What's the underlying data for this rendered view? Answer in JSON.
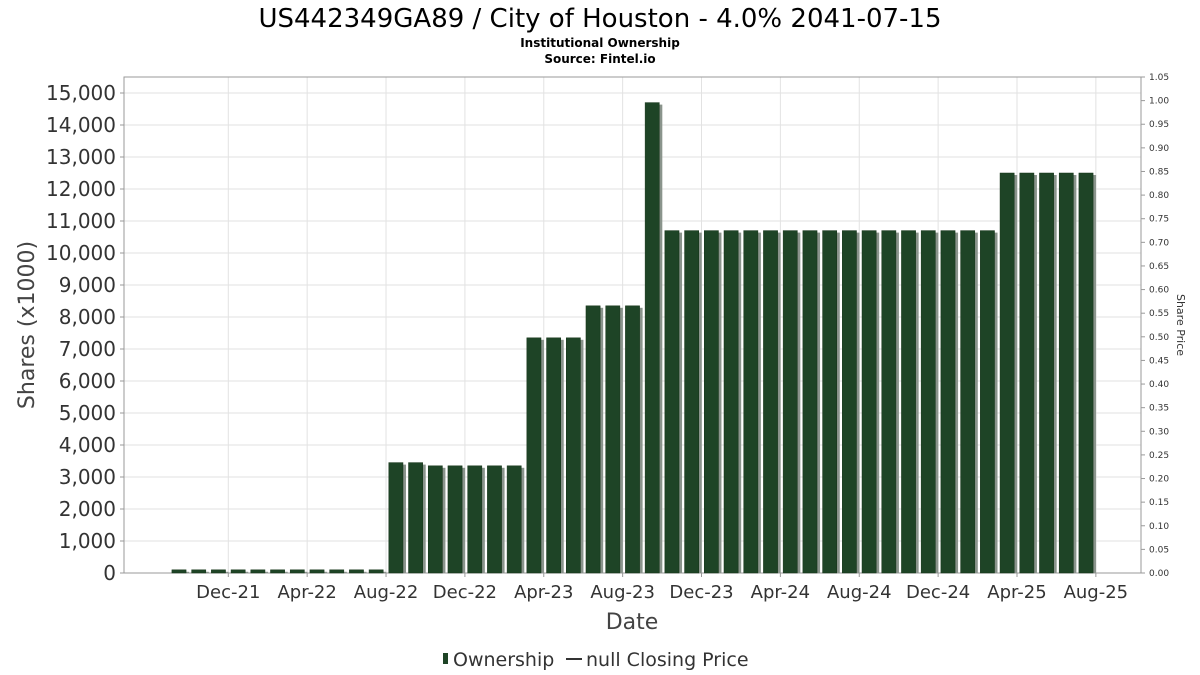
{
  "chart_data": {
    "type": "bar",
    "title": "US442349GA89 / City of Houston - 4.0% 2041-07-15",
    "subtitle": "Institutional Ownership",
    "source": "Source: Fintel.io",
    "xlabel": "Date",
    "ylabel": "Shares (x1000)",
    "y2label": "Share Price",
    "ylim": [
      0,
      15500
    ],
    "y2lim": [
      0,
      1.05
    ],
    "yticks": [
      "0",
      "1,000",
      "2,000",
      "3,000",
      "4,000",
      "5,000",
      "6,000",
      "7,000",
      "8,000",
      "9,000",
      "10,000",
      "11,000",
      "12,000",
      "13,000",
      "14,000",
      "15,000"
    ],
    "y2ticks": [
      "0.00",
      "0.05",
      "0.10",
      "0.15",
      "0.20",
      "0.25",
      "0.30",
      "0.35",
      "0.40",
      "0.45",
      "0.50",
      "0.55",
      "0.60",
      "0.65",
      "0.70",
      "0.75",
      "0.80",
      "0.85",
      "0.90",
      "0.95",
      "1.00",
      "1.05"
    ],
    "xticks": [
      "Dec-21",
      "Apr-22",
      "Aug-22",
      "Dec-22",
      "Apr-23",
      "Aug-23",
      "Dec-23",
      "Apr-24",
      "Aug-24",
      "Dec-24",
      "Apr-25",
      "Aug-25"
    ],
    "x": [
      "2021-10",
      "2021-11",
      "2021-12",
      "2022-01",
      "2022-02",
      "2022-03",
      "2022-04",
      "2022-05",
      "2022-06",
      "2022-07",
      "2022-08",
      "2022-09",
      "2022-10",
      "2022-11",
      "2022-12",
      "2023-01",
      "2023-02",
      "2023-03",
      "2023-04",
      "2023-05",
      "2023-06",
      "2023-07",
      "2023-08",
      "2023-09",
      "2023-10",
      "2023-11",
      "2023-12",
      "2024-01",
      "2024-02",
      "2024-03",
      "2024-04",
      "2024-05",
      "2024-06",
      "2024-07",
      "2024-08",
      "2024-09",
      "2024-10",
      "2024-11",
      "2024-12",
      "2025-01",
      "2025-02",
      "2025-03",
      "2025-04",
      "2025-05",
      "2025-06",
      "2025-07",
      "2025-08"
    ],
    "series": [
      {
        "name": "Ownership",
        "color": "#1e4426",
        "values": [
          100,
          100,
          100,
          100,
          100,
          100,
          100,
          100,
          100,
          100,
          100,
          3450,
          3450,
          3350,
          3350,
          3350,
          3350,
          3350,
          7350,
          7350,
          7350,
          8350,
          8350,
          8350,
          14700,
          10700,
          10700,
          10700,
          10700,
          10700,
          10700,
          10700,
          10700,
          10700,
          10700,
          10700,
          10700,
          10700,
          10700,
          10700,
          10700,
          10700,
          12500,
          12500,
          12500,
          12500,
          12500
        ]
      }
    ],
    "legend": {
      "placement": "bottom",
      "items": [
        {
          "label": "Ownership",
          "marker": "bar",
          "color": "#1e4426"
        },
        {
          "label": "null Closing Price",
          "marker": "line",
          "color": "#333333"
        }
      ]
    },
    "grid": true
  }
}
